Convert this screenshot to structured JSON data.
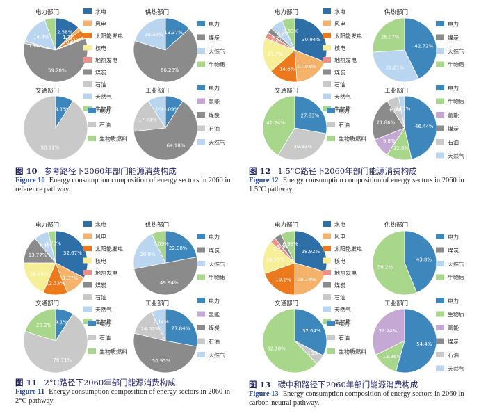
{
  "figures": [
    {
      "title_zh": "参考路径下2060年部门能源消费构成",
      "fig_no_zh": "图 10",
      "fig_no_en": "Figure 10",
      "caption_en": "Energy consumption composition of energy sectors in 2060 in reference pathway.",
      "chart_data": [
        {
          "type": "pie",
          "title": "电力部门",
          "categories": [
            "水电",
            "风电",
            "太阳能发电",
            "核电",
            "地热发电",
            "煤炭",
            "石油",
            "天然气",
            "生物质"
          ],
          "values": [
            12.58,
            1.78,
            3.53,
            0.69,
            0.5,
            59.28,
            1.28,
            14.8,
            5.56
          ],
          "labels": [
            "12.58%",
            "1.78%",
            "3.53%",
            "0.69%",
            "",
            "59.28%",
            "1.28%",
            "14.8%",
            ""
          ],
          "legend": [
            "水电",
            "风电",
            "太阳能发电",
            "核电",
            "地热发电",
            "煤炭",
            "石油",
            "天然气",
            "生物质"
          ]
        },
        {
          "type": "pie",
          "title": "供热部门",
          "categories": [
            "电力",
            "煤炭",
            "天然气",
            "生物质"
          ],
          "values": [
            13.37,
            66.28,
            20.36,
            0
          ],
          "labels": [
            "13.37%",
            "66.28%",
            "20.36%",
            ""
          ],
          "legend": [
            "电力",
            "煤炭",
            "天然气",
            "生物质"
          ]
        },
        {
          "type": "pie",
          "title": "交通部门",
          "categories": [
            "电力",
            "石油",
            "生物质燃料"
          ],
          "values": [
            9.1,
            90.91,
            0
          ],
          "labels": [
            "9.1%",
            "90.91%",
            ""
          ],
          "legend": [
            "电力",
            "石油",
            "生物质燃料"
          ]
        },
        {
          "type": "pie",
          "title": "工业部门",
          "categories": [
            "电力",
            "氢能",
            "煤炭",
            "石油",
            "天然气"
          ],
          "values": [
            9.09,
            0,
            64.18,
            17.73,
            9
          ],
          "labels": [
            "9.09%",
            "",
            "64.18%",
            "17.73%",
            "9%"
          ],
          "legend": [
            "电力",
            "氢能",
            "煤炭",
            "石油",
            "天然气"
          ]
        }
      ]
    },
    {
      "title_zh": "1.5°C路径下2060年部门能源消费构成",
      "fig_no_zh": "图 12",
      "fig_no_en": "Figure 12",
      "caption_en": "Energy consumption composition of energy sectors in 2060 in 1.5°C pathway.",
      "chart_data": [
        {
          "type": "pie",
          "title": "电力部门",
          "categories": [
            "水电",
            "风电",
            "太阳能发电",
            "核电",
            "地热发电",
            "煤炭",
            "石油",
            "天然气",
            "生物质"
          ],
          "values": [
            30.94,
            17.95,
            14.6,
            17.7,
            2.94,
            2.77,
            0,
            6.6,
            6.53
          ],
          "labels": [
            "30.94%",
            "17.95%",
            "14.6%",
            "17.7%",
            "2.94%",
            "2.77%",
            "",
            "6.6%",
            "6.53%"
          ],
          "legend": [
            "水电",
            "风电",
            "太阳能发电",
            "核电",
            "地热发电",
            "煤炭",
            "石油",
            "天然气",
            "生物质"
          ]
        },
        {
          "type": "pie",
          "title": "供热部门",
          "categories": [
            "电力",
            "煤炭",
            "天然气",
            "生物质"
          ],
          "values": [
            42.72,
            0,
            31.21,
            26.07
          ],
          "labels": [
            "42.72%",
            "",
            "31.21%",
            "26.07%"
          ],
          "legend": [
            "电力",
            "煤炭",
            "天然气",
            "生物质"
          ]
        },
        {
          "type": "pie",
          "title": "交通部门",
          "categories": [
            "电力",
            "石油",
            "生物质燃料"
          ],
          "values": [
            27.83,
            30.93,
            41.24
          ],
          "labels": [
            "27.83%",
            "30.93%",
            "41.24%"
          ],
          "legend": [
            "电力",
            "石油",
            "生物质燃料"
          ]
        },
        {
          "type": "pie",
          "title": "工业部门",
          "categories": [
            "电力",
            "生物质",
            "氢能",
            "煤炭",
            "石油",
            "天然气"
          ],
          "values": [
            46.44,
            12.8,
            9.8,
            21.86,
            6.04,
            3.07
          ],
          "labels": [
            "46.44%",
            "12.8%",
            "9.8%",
            "21.86%",
            "6.04%",
            "3.07%"
          ],
          "legend": [
            "电力",
            "生物质",
            "氢能",
            "煤炭",
            "石油",
            "天然气"
          ]
        }
      ]
    },
    {
      "title_zh": "2°C路径下2060年部门能源消费构成",
      "fig_no_zh": "图 11",
      "fig_no_en": "Figure 11",
      "caption_en": "Energy consumption composition of energy sectors in 2060 in 2°C pathway.",
      "chart_data": [
        {
          "type": "pie",
          "title": "电力部门",
          "categories": [
            "水电",
            "风电",
            "太阳能发电",
            "核电",
            "地热发电",
            "煤炭",
            "石油",
            "天然气",
            "生物质"
          ],
          "values": [
            32.67,
            11.37,
            12.33,
            18.69,
            0,
            13.77,
            0,
            7.45,
            3.73
          ],
          "labels": [
            "32.67%",
            "11.37%",
            "12.33%",
            "18.69%",
            "",
            "13.77%",
            "",
            "7.45%",
            "3.73%"
          ],
          "legend": [
            "水电",
            "风电",
            "太阳能发电",
            "核电",
            "地热发电",
            "煤炭",
            "石油",
            "天然气",
            "生物质"
          ]
        },
        {
          "type": "pie",
          "title": "供热部门",
          "categories": [
            "电力",
            "煤炭",
            "天然气",
            "生物质"
          ],
          "values": [
            22.08,
            49.94,
            20.9,
            7.09
          ],
          "labels": [
            "22.08%",
            "49.94%",
            "20.9%",
            "7.09%"
          ],
          "legend": [
            "电力",
            "煤炭",
            "天然气",
            "生物质"
          ]
        },
        {
          "type": "pie",
          "title": "交通部门",
          "categories": [
            "电力",
            "石油",
            "生物质燃料"
          ],
          "values": [
            9.1,
            70.71,
            20.2
          ],
          "labels": [
            "9.1%",
            "70.71%",
            "20.2%"
          ],
          "legend": [
            "电力",
            "石油",
            "生物质燃料"
          ]
        },
        {
          "type": "pie",
          "title": "工业部门",
          "categories": [
            "电力",
            "氢能",
            "煤炭",
            "石油",
            "天然气"
          ],
          "values": [
            27.84,
            0,
            50.95,
            14.07,
            7.14
          ],
          "labels": [
            "27.84%",
            "",
            "50.95%",
            "14.07%",
            "7.14%"
          ],
          "legend": [
            "电力",
            "氢能",
            "煤炭",
            "石油",
            "天然气"
          ]
        }
      ]
    },
    {
      "title_zh": "碳中和路径下2060年部门能源消费构成",
      "fig_no_zh": "图 13",
      "fig_no_en": "Figure 13",
      "caption_en": "Energy consumption composition of energy sectors in 2060 in carbon-neutral pathway.",
      "chart_data": [
        {
          "type": "pie",
          "title": "电力部门",
          "categories": [
            "水电",
            "风电",
            "太阳能发电",
            "核电",
            "地热发电",
            "煤炭",
            "石油",
            "天然气",
            "生物质"
          ],
          "values": [
            28.92,
            20.14,
            19.1,
            16.55,
            2.75,
            3.56,
            0,
            0,
            6.99
          ],
          "labels": [
            "28.92%",
            "20.14%",
            "19.1%",
            "16.55%",
            "2.75%",
            "3.56%",
            "",
            "",
            "6.99%"
          ],
          "legend": [
            "水电",
            "风电",
            "太阳能发电",
            "核电",
            "地热发电",
            "煤炭",
            "石油",
            "天然气",
            "生物质"
          ]
        },
        {
          "type": "pie",
          "title": "供热部门",
          "categories": [
            "电力",
            "煤炭",
            "天然气",
            "生物质"
          ],
          "values": [
            43.8,
            0,
            0,
            56.2
          ],
          "labels": [
            "43.8%",
            "",
            "",
            "56.2%"
          ],
          "legend": [
            "电力",
            "煤炭",
            "天然气",
            "生物质"
          ]
        },
        {
          "type": "pie",
          "title": "交通部门",
          "categories": [
            "电力",
            "石油",
            "生物质燃料"
          ],
          "values": [
            32.64,
            5.18,
            62.18
          ],
          "labels": [
            "32.64%",
            "5.18%",
            "62.18%"
          ],
          "legend": [
            "电力",
            "石油",
            "生物质燃料"
          ]
        },
        {
          "type": "pie",
          "title": "工业部门",
          "categories": [
            "电力",
            "生物质",
            "氢能",
            "煤炭",
            "石油",
            "天然气"
          ],
          "values": [
            54.4,
            13.36,
            32.24,
            0,
            0,
            0
          ],
          "labels": [
            "54.4%",
            "13.36%",
            "32.24%",
            "",
            "",
            ""
          ],
          "legend": [
            "电力",
            "生物质",
            "氢能",
            "煤炭",
            "石油",
            "天然气"
          ]
        }
      ]
    }
  ],
  "colors": {
    "水电": "#2e6fa8",
    "风电": "#f5b26b",
    "太阳能发电": "#ec7a1c",
    "核电": "#f7ef97",
    "地热发电": "#ef8f8a",
    "煤炭": "#8b8b8b",
    "石油": "#c9c9c9",
    "天然气": "#b9d5f0",
    "生物质": "#a8d68b",
    "电力": "#3d87bd",
    "生物质燃料": "#a8d68b",
    "氢能": "#c5a9d4"
  }
}
